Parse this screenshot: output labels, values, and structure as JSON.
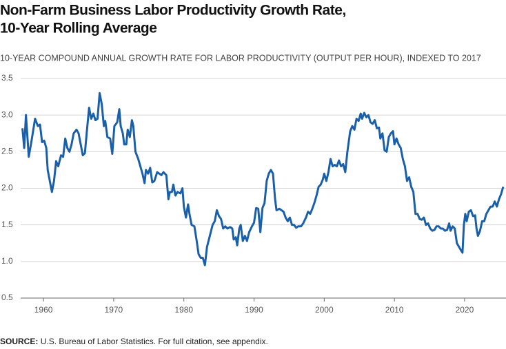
{
  "chart_data": {
    "type": "line",
    "title": [
      "Non-Farm Business Labor Productivity Growth Rate,",
      "10-Year Rolling Average"
    ],
    "subtitle": "10-YEAR COMPOUND ANNUAL GROWTH RATE FOR LABOR PRODUCTIVITY (OUTPUT PER HOUR), INDEXED TO 2017",
    "source_label": "SOURCE:",
    "source": "U.S. Bureau of Labor Statistics. For full citation, see appendix.",
    "color": "#1b5fa8",
    "grid": true,
    "xlim": [
      1956.75,
      2025.9
    ],
    "xticks": [
      1960,
      1970,
      1980,
      1990,
      2000,
      2010,
      2020
    ],
    "ylim": [
      0.5,
      3.5
    ],
    "yticks": [
      0.5,
      {
        "value": 1,
        "label": "1.0"
      },
      1.5,
      {
        "value": 2,
        "label": "2.0"
      },
      2.5,
      {
        "value": 3,
        "label": "3.0"
      },
      3.5
    ],
    "x": [
      1957.0,
      1957.25,
      1957.5,
      1957.9,
      1958.3,
      1958.8,
      1959.2,
      1959.5,
      1959.8,
      1960.1,
      1960.4,
      1960.6,
      1961.0,
      1961.2,
      1961.5,
      1961.8,
      1962.1,
      1962.5,
      1962.8,
      1963.1,
      1963.4,
      1963.7,
      1964.0,
      1964.3,
      1964.7,
      1965.0,
      1965.3,
      1965.6,
      1965.9,
      1966.2,
      1966.5,
      1966.8,
      1967.1,
      1967.4,
      1967.7,
      1968.0,
      1968.3,
      1968.6,
      1968.8,
      1969.1,
      1969.5,
      1969.8,
      1970.1,
      1970.5,
      1970.8,
      1971.0,
      1971.3,
      1971.5,
      1971.8,
      1972.0,
      1972.3,
      1972.6,
      1972.8,
      1973.1,
      1973.5,
      1973.8,
      1974.1,
      1974.4,
      1974.6,
      1974.9,
      1975.2,
      1975.5,
      1975.8,
      1976.2,
      1976.5,
      1976.8,
      1977.1,
      1977.5,
      1977.8,
      1978.0,
      1978.3,
      1978.5,
      1978.8,
      1979.1,
      1979.5,
      1979.8,
      1980.0,
      1980.3,
      1980.6,
      1980.8,
      1981.1,
      1981.5,
      1981.8,
      1982.1,
      1982.4,
      1982.7,
      1983.0,
      1983.3,
      1983.7,
      1984.1,
      1984.4,
      1984.7,
      1985.0,
      1985.3,
      1985.6,
      1985.9,
      1986.2,
      1986.6,
      1986.9,
      1987.1,
      1987.4,
      1987.6,
      1987.9,
      1988.1,
      1988.4,
      1988.7,
      1989.0,
      1989.3,
      1989.7,
      1990.0,
      1990.3,
      1990.6,
      1990.9,
      1991.2,
      1991.5,
      1991.8,
      1992.1,
      1992.4,
      1992.7,
      1993.0,
      1993.2,
      1993.6,
      1993.9,
      1994.2,
      1994.5,
      1994.8,
      1995.1,
      1995.4,
      1995.7,
      1996.0,
      1996.3,
      1996.7,
      1997.0,
      1997.4,
      1997.7,
      1998.0,
      1998.3,
      1998.6,
      1998.9,
      1999.2,
      1999.5,
      1999.8,
      2000.0,
      2000.3,
      2000.6,
      2000.9,
      2001.2,
      2001.5,
      2001.8,
      2002.1,
      2002.4,
      2002.7,
      2003.0,
      2003.3,
      2003.7,
      2004.0,
      2004.3,
      2004.6,
      2004.9,
      2005.2,
      2005.4,
      2005.7,
      2006.0,
      2006.3,
      2006.6,
      2006.9,
      2007.2,
      2007.5,
      2007.8,
      2008.0,
      2008.3,
      2008.6,
      2008.9,
      2009.2,
      2009.5,
      2009.8,
      2010.0,
      2010.3,
      2010.6,
      2010.9,
      2011.2,
      2011.5,
      2011.8,
      2012.1,
      2012.4,
      2012.7,
      2013.0,
      2013.3,
      2013.6,
      2013.9,
      2014.2,
      2014.5,
      2014.8,
      2015.1,
      2015.4,
      2015.7,
      2016.0,
      2016.3,
      2016.6,
      2016.9,
      2017.2,
      2017.5,
      2017.8,
      2018.0,
      2018.3,
      2018.6,
      2018.9,
      2019.2,
      2019.5,
      2019.7,
      2019.9,
      2020.1,
      2020.3,
      2020.6,
      2020.9,
      2021.2,
      2021.5,
      2021.7,
      2021.9,
      2022.2,
      2022.5,
      2022.8,
      2023.1,
      2023.4,
      2023.7,
      2024.0,
      2024.3,
      2024.6,
      2024.9,
      2025.2,
      2025.5
    ],
    "values": [
      2.82,
      2.55,
      3.0,
      2.43,
      2.65,
      2.95,
      2.85,
      2.87,
      2.63,
      2.65,
      2.55,
      2.25,
      2.05,
      1.95,
      2.1,
      2.37,
      2.3,
      2.45,
      2.43,
      2.68,
      2.55,
      2.5,
      2.6,
      2.75,
      2.8,
      2.75,
      2.6,
      2.45,
      2.48,
      2.8,
      3.1,
      2.95,
      3.02,
      2.93,
      2.95,
      3.3,
      3.15,
      2.85,
      2.92,
      2.7,
      2.68,
      2.47,
      2.85,
      2.9,
      3.08,
      2.85,
      2.75,
      2.6,
      2.6,
      2.8,
      2.7,
      2.93,
      2.85,
      2.5,
      2.4,
      2.3,
      2.2,
      2.07,
      2.25,
      2.2,
      2.28,
      2.08,
      2.1,
      2.22,
      2.2,
      2.18,
      2.22,
      2.18,
      1.85,
      1.95,
      1.95,
      2.05,
      1.9,
      1.95,
      1.93,
      2.0,
      1.75,
      1.6,
      1.78,
      1.65,
      1.5,
      1.48,
      1.3,
      1.1,
      1.05,
      1.05,
      0.95,
      1.2,
      1.35,
      1.5,
      1.55,
      1.7,
      1.62,
      1.58,
      1.45,
      1.48,
      1.45,
      1.47,
      1.45,
      1.3,
      1.33,
      1.22,
      1.45,
      1.5,
      1.28,
      1.35,
      1.28,
      1.4,
      1.48,
      1.53,
      1.73,
      1.72,
      1.4,
      1.73,
      1.8,
      2.1,
      2.2,
      2.25,
      2.2,
      1.85,
      1.7,
      1.72,
      1.7,
      1.68,
      1.6,
      1.55,
      1.6,
      1.5,
      1.5,
      1.46,
      1.48,
      1.48,
      1.52,
      1.6,
      1.68,
      1.65,
      1.72,
      1.8,
      1.9,
      2.02,
      2.05,
      2.12,
      2.2,
      2.1,
      2.22,
      2.4,
      2.3,
      2.32,
      2.3,
      2.38,
      2.3,
      2.33,
      2.22,
      2.5,
      2.78,
      2.85,
      2.8,
      2.95,
      2.92,
      3.02,
      2.95,
      3.03,
      2.97,
      3.0,
      2.9,
      2.88,
      2.93,
      2.82,
      2.83,
      2.68,
      2.75,
      2.52,
      2.5,
      2.7,
      2.75,
      2.78,
      2.6,
      2.68,
      2.6,
      2.55,
      2.4,
      2.3,
      2.1,
      2.15,
      2.02,
      1.95,
      1.65,
      1.65,
      1.58,
      1.57,
      1.6,
      1.5,
      1.52,
      1.45,
      1.42,
      1.43,
      1.48,
      1.48,
      1.45,
      1.45,
      1.42,
      1.43,
      1.52,
      1.42,
      1.48,
      1.45,
      1.25,
      1.2,
      1.15,
      1.12,
      1.5,
      1.65,
      1.55,
      1.68,
      1.7,
      1.62,
      1.63,
      1.45,
      1.35,
      1.42,
      1.55,
      1.55,
      1.65,
      1.7,
      1.75,
      1.75,
      1.82,
      1.75,
      1.85,
      1.92,
      2.02
    ]
  }
}
